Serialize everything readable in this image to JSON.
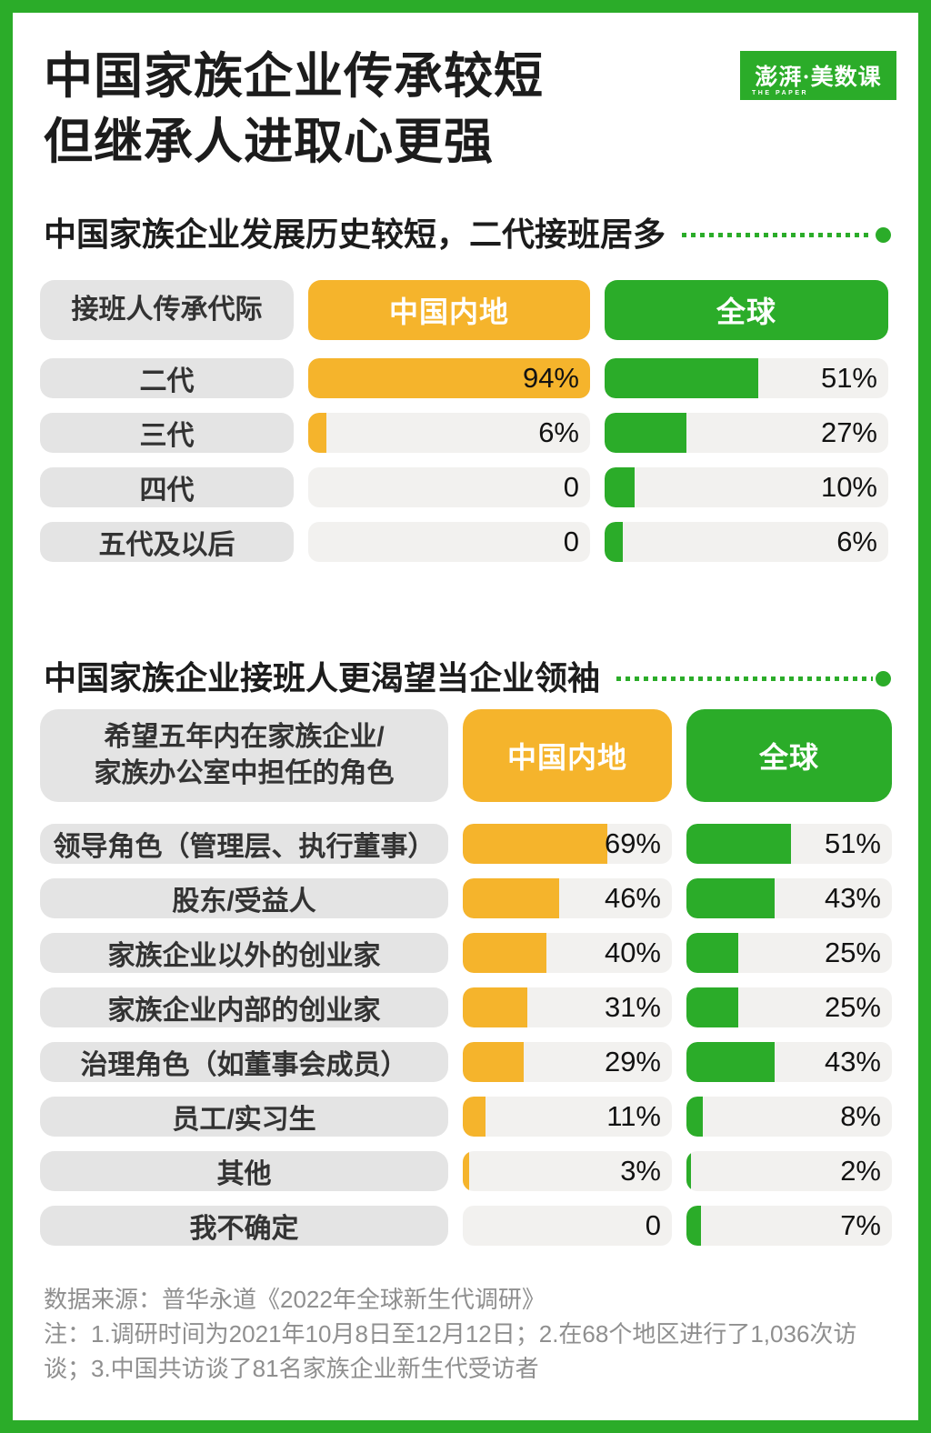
{
  "theme": {
    "green": "#2BAC29",
    "yellow": "#F5B42C",
    "label_bg": "#E4E4E4",
    "track_bg": "#F2F1EF",
    "footer_color": "#8F8F8F"
  },
  "header": {
    "title_line1": "中国家族企业传承较短",
    "title_line2": "但继承人进取心更强",
    "logo_text": "澎湃·美数课",
    "logo_subtext": "THE PAPER"
  },
  "chart_data": [
    {
      "type": "bar",
      "title": "中国家族企业发展历史较短，二代接班居多",
      "corner_label": "接班人传承代际",
      "legend_position": "top",
      "grid": false,
      "scale_max": 94,
      "categories": [
        "二代",
        "三代",
        "四代",
        "五代及以后"
      ],
      "series": [
        {
          "name": "中国内地",
          "color": "yellow",
          "values": [
            94,
            6,
            0,
            0
          ],
          "labels": [
            "94%",
            "6%",
            "0",
            "0"
          ]
        },
        {
          "name": "全球",
          "color": "green",
          "values": [
            51,
            27,
            10,
            6
          ],
          "labels": [
            "51%",
            "27%",
            "10%",
            "6%"
          ]
        }
      ]
    },
    {
      "type": "bar",
      "title": "中国家族企业接班人更渴望当企业领袖",
      "corner_label": "希望五年内在家族企业/\n家族办公室中担任的角色",
      "legend_position": "top",
      "grid": false,
      "scale_max": 100,
      "categories": [
        "领导角色（管理层、执行董事）",
        "股东/受益人",
        "家族企业以外的创业家",
        "家族企业内部的创业家",
        "治理角色（如董事会成员）",
        "员工/实习生",
        "其他",
        "我不确定"
      ],
      "series": [
        {
          "name": "中国内地",
          "color": "yellow",
          "values": [
            69,
            46,
            40,
            31,
            29,
            11,
            3,
            0
          ],
          "labels": [
            "69%",
            "46%",
            "40%",
            "31%",
            "29%",
            "11%",
            "3%",
            "0"
          ]
        },
        {
          "name": "全球",
          "color": "green",
          "values": [
            51,
            43,
            25,
            25,
            43,
            8,
            2,
            7
          ],
          "labels": [
            "51%",
            "43%",
            "25%",
            "25%",
            "43%",
            "8%",
            "2%",
            "7%"
          ]
        }
      ]
    }
  ],
  "footer": {
    "source": "数据来源：普华永道《2022年全球新生代调研》",
    "notes": "注：1.调研时间为2021年10月8日至12月12日；2.在68个地区进行了1,036次访谈；3.中国共访谈了81名家族企业新生代受访者"
  }
}
